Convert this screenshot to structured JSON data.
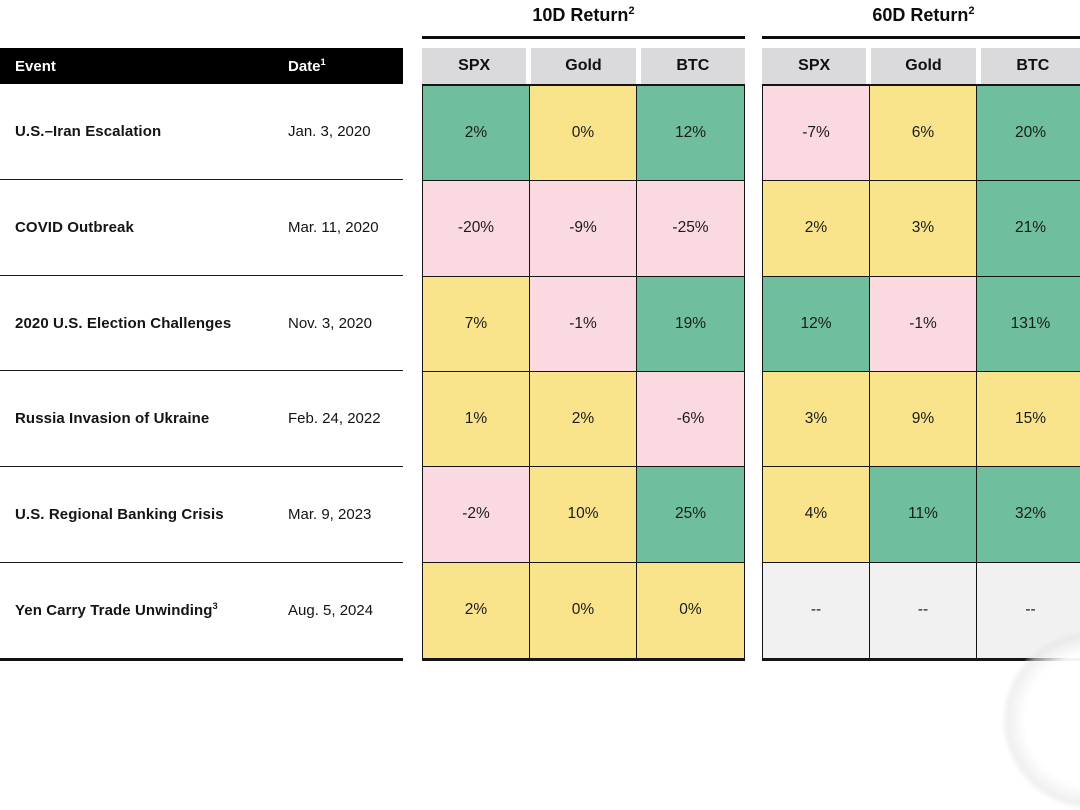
{
  "colors": {
    "green": "#6FBE9D",
    "yellow": "#F9E48C",
    "pink": "#FBD9E0",
    "gray": "#F1F1F1",
    "header_gray": "#DADADD",
    "header_black": "#000000"
  },
  "event_table_header": {
    "event_label": "Event",
    "date_label": "Date",
    "date_sup": "1"
  },
  "sections": [
    {
      "title": "10D Return",
      "sup": "2",
      "columns": [
        "SPX",
        "Gold",
        "BTC"
      ]
    },
    {
      "title": "60D Return",
      "sup": "2",
      "columns": [
        "SPX",
        "Gold",
        "BTC"
      ]
    }
  ],
  "chart_data": {
    "type": "table",
    "row_header_columns": [
      {
        "label": "Event"
      },
      {
        "label": "Date",
        "footnote_marker": "1"
      }
    ],
    "column_groups": [
      {
        "label": "10D Return",
        "footnote_marker": "2",
        "columns": [
          "SPX",
          "Gold",
          "BTC"
        ]
      },
      {
        "label": "60D Return",
        "footnote_marker": "2",
        "columns": [
          "SPX",
          "Gold",
          "BTC"
        ]
      }
    ],
    "rows": [
      {
        "event": "U.S.–Iran Escalation",
        "event_sup": "",
        "date": "Jan. 3, 2020",
        "d10": [
          {
            "value": "2%",
            "color": "green"
          },
          {
            "value": "0%",
            "color": "yellow"
          },
          {
            "value": "12%",
            "color": "green"
          }
        ],
        "d60": [
          {
            "value": "-7%",
            "color": "pink"
          },
          {
            "value": "6%",
            "color": "yellow"
          },
          {
            "value": "20%",
            "color": "green"
          }
        ]
      },
      {
        "event": "COVID Outbreak",
        "event_sup": "",
        "date": "Mar. 11, 2020",
        "d10": [
          {
            "value": "-20%",
            "color": "pink"
          },
          {
            "value": "-9%",
            "color": "pink"
          },
          {
            "value": "-25%",
            "color": "pink"
          }
        ],
        "d60": [
          {
            "value": "2%",
            "color": "yellow"
          },
          {
            "value": "3%",
            "color": "yellow"
          },
          {
            "value": "21%",
            "color": "green"
          }
        ]
      },
      {
        "event": "2020 U.S. Election Challenges",
        "event_sup": "",
        "date": "Nov. 3, 2020",
        "d10": [
          {
            "value": "7%",
            "color": "yellow"
          },
          {
            "value": "-1%",
            "color": "pink"
          },
          {
            "value": "19%",
            "color": "green"
          }
        ],
        "d60": [
          {
            "value": "12%",
            "color": "green"
          },
          {
            "value": "-1%",
            "color": "pink"
          },
          {
            "value": "131%",
            "color": "green"
          }
        ]
      },
      {
        "event": "Russia Invasion of Ukraine",
        "event_sup": "",
        "date": "Feb. 24, 2022",
        "d10": [
          {
            "value": "1%",
            "color": "yellow"
          },
          {
            "value": "2%",
            "color": "yellow"
          },
          {
            "value": "-6%",
            "color": "pink"
          }
        ],
        "d60": [
          {
            "value": "3%",
            "color": "yellow"
          },
          {
            "value": "9%",
            "color": "yellow"
          },
          {
            "value": "15%",
            "color": "yellow"
          }
        ]
      },
      {
        "event": "U.S. Regional Banking Crisis",
        "event_sup": "",
        "date": "Mar. 9, 2023",
        "d10": [
          {
            "value": "-2%",
            "color": "pink"
          },
          {
            "value": "10%",
            "color": "yellow"
          },
          {
            "value": "25%",
            "color": "green"
          }
        ],
        "d60": [
          {
            "value": "4%",
            "color": "yellow"
          },
          {
            "value": "11%",
            "color": "green"
          },
          {
            "value": "32%",
            "color": "green"
          }
        ]
      },
      {
        "event": "Yen Carry Trade Unwinding",
        "event_sup": "3",
        "date": "Aug. 5, 2024",
        "d10": [
          {
            "value": "2%",
            "color": "yellow"
          },
          {
            "value": "0%",
            "color": "yellow"
          },
          {
            "value": "0%",
            "color": "yellow"
          }
        ],
        "d60": [
          {
            "value": "--",
            "color": "gray"
          },
          {
            "value": "--",
            "color": "gray"
          },
          {
            "value": "--",
            "color": "gray"
          }
        ]
      }
    ]
  }
}
